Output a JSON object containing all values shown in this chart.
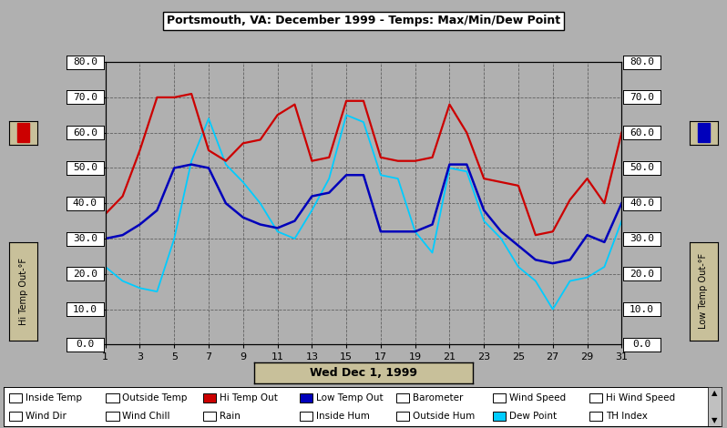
{
  "title": "Portsmouth, VA: December 1999 - Temps: Max/Min/Dew Point",
  "xlabel_center": "Wed Dec 1, 1999",
  "ylabel_left": "Hi Temp Out-°F",
  "ylabel_right": "Low Temp Out-°F",
  "bg_color": "#b0b0b0",
  "plot_bg_color": "#b0b0b0",
  "side_box_color": "#c8c09a",
  "ylim": [
    0,
    80
  ],
  "xlim": [
    1,
    31
  ],
  "yticks": [
    0,
    10,
    20,
    30,
    40,
    50,
    60,
    70,
    80
  ],
  "xticks": [
    1,
    3,
    5,
    7,
    9,
    11,
    13,
    15,
    17,
    19,
    21,
    23,
    25,
    27,
    29,
    31
  ],
  "hi_temp": [
    37,
    42,
    55,
    70,
    70,
    71,
    55,
    52,
    57,
    58,
    65,
    68,
    52,
    53,
    69,
    69,
    53,
    52,
    52,
    53,
    68,
    60,
    47,
    46,
    45,
    31,
    32,
    41,
    47,
    40,
    60
  ],
  "low_temp": [
    30,
    31,
    34,
    38,
    50,
    51,
    50,
    40,
    36,
    34,
    33,
    35,
    42,
    43,
    48,
    48,
    32,
    32,
    32,
    34,
    51,
    51,
    38,
    32,
    28,
    24,
    23,
    24,
    31,
    29,
    40
  ],
  "dew_point": [
    22,
    18,
    16,
    15,
    30,
    52,
    64,
    51,
    46,
    40,
    32,
    30,
    38,
    47,
    65,
    63,
    48,
    47,
    32,
    26,
    50,
    49,
    35,
    30,
    22,
    18,
    10,
    18,
    19,
    22,
    35
  ],
  "hi_color": "#cc0000",
  "low_color": "#0000bb",
  "dew_color": "#00ccff",
  "legend_row1": [
    {
      "label": "Inside Temp",
      "color": "#ffffff"
    },
    {
      "label": "Outside Temp",
      "color": "#ffffff"
    },
    {
      "label": "Hi Temp Out",
      "color": "#cc0000"
    },
    {
      "label": "Low Temp Out",
      "color": "#0000bb"
    },
    {
      "label": "Barometer",
      "color": "#ffffff"
    },
    {
      "label": "Wind Speed",
      "color": "#ffffff"
    },
    {
      "label": "Hi Wind Speed",
      "color": "#ffffff"
    }
  ],
  "legend_row2": [
    {
      "label": "Wind Dir",
      "color": "#ffffff"
    },
    {
      "label": "Wind Chill",
      "color": "#ffffff"
    },
    {
      "label": "Rain",
      "color": "#ffffff"
    },
    {
      "label": "Inside Hum",
      "color": "#ffffff"
    },
    {
      "label": "Outside Hum",
      "color": "#ffffff"
    },
    {
      "label": "Dew Point",
      "color": "#00ccff"
    },
    {
      "label": "TH Index",
      "color": "#ffffff"
    }
  ]
}
